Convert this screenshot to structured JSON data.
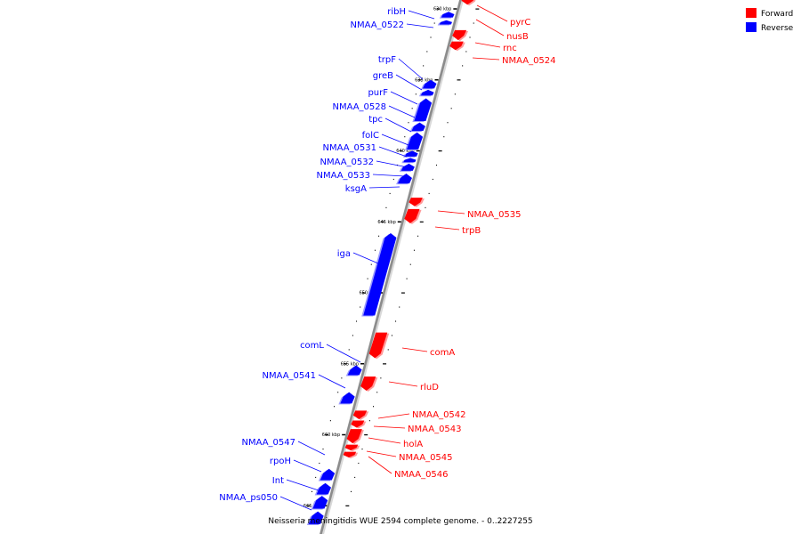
{
  "legend": {
    "forward_label": "Forward",
    "reverse_label": "Reverse",
    "forward_color": "#ff0000",
    "reverse_color": "#0000ff"
  },
  "caption": "Neisseria meningitidis WUE 2594 complete genome. - 0..2227255",
  "colors": {
    "axis": "#8c8c8c",
    "leader_forward": "#ff0000",
    "leader_reverse": "#0000ff"
  },
  "ticks": [
    {
      "label": "630 kbp",
      "kbp": 630
    },
    {
      "label": "635 kbp",
      "kbp": 635
    },
    {
      "label": "640 kbp",
      "kbp": 640
    },
    {
      "label": "645 kbp",
      "kbp": 645
    },
    {
      "label": "650 kbp",
      "kbp": 650
    },
    {
      "label": "655 kbp",
      "kbp": 655
    },
    {
      "label": "660 kbp",
      "kbp": 660
    },
    {
      "label": "665 kbp",
      "kbp": 665
    }
  ],
  "genes": [
    {
      "name": "pyrC",
      "strand": "forward",
      "start_kbp": 629.1,
      "end_kbp": 629.7
    },
    {
      "name": "nusB",
      "strand": "forward"
    },
    {
      "name": "rnc",
      "strand": "forward",
      "start_kbp": 631.5,
      "end_kbp": 632.2
    },
    {
      "name": "NMAA_0524",
      "strand": "forward",
      "start_kbp": 632.3,
      "end_kbp": 632.9
    },
    {
      "name": "ribH",
      "strand": "reverse",
      "start_kbp": 630.2,
      "end_kbp": 630.6
    },
    {
      "name": "NMAA_0522",
      "strand": "reverse",
      "start_kbp": 630.8,
      "end_kbp": 631.1
    },
    {
      "name": "trpF",
      "strand": "reverse",
      "start_kbp": 635.0,
      "end_kbp": 635.6
    },
    {
      "name": "greB",
      "strand": "reverse",
      "start_kbp": 635.7,
      "end_kbp": 636.1
    },
    {
      "name": "purF",
      "strand": "reverse",
      "start_kbp": 636.3,
      "end_kbp": 637.9
    },
    {
      "name": "NMAA_0528",
      "strand": "reverse"
    },
    {
      "name": "tpc",
      "strand": "reverse",
      "start_kbp": 638.0,
      "end_kbp": 638.6
    },
    {
      "name": "folC",
      "strand": "reverse",
      "start_kbp": 638.7,
      "end_kbp": 639.9
    },
    {
      "name": "NMAA_0531",
      "strand": "reverse",
      "start_kbp": 640.0,
      "end_kbp": 640.4
    },
    {
      "name": "NMAA_0532",
      "strand": "reverse",
      "start_kbp": 640.5,
      "end_kbp": 640.8
    },
    {
      "name": "NMAA_0533",
      "strand": "reverse",
      "start_kbp": 640.9,
      "end_kbp": 641.4
    },
    {
      "name": "ksgA",
      "strand": "reverse",
      "start_kbp": 641.6,
      "end_kbp": 642.3
    },
    {
      "name": "NMAA_0535",
      "strand": "forward",
      "start_kbp": 643.3,
      "end_kbp": 643.9
    },
    {
      "name": "trpB",
      "strand": "forward",
      "start_kbp": 644.1,
      "end_kbp": 645.1
    },
    {
      "name": "iga",
      "strand": "reverse",
      "start_kbp": 645.8,
      "end_kbp": 651.6
    },
    {
      "name": "comA",
      "strand": "forward",
      "start_kbp": 652.8,
      "end_kbp": 654.6
    },
    {
      "name": "comL",
      "strand": "reverse",
      "start_kbp": 655.1,
      "end_kbp": 655.8
    },
    {
      "name": "rluD",
      "strand": "forward",
      "start_kbp": 655.9,
      "end_kbp": 656.9
    },
    {
      "name": "NMAA_0541",
      "strand": "reverse",
      "start_kbp": 657.0,
      "end_kbp": 657.8
    },
    {
      "name": "NMAA_0542",
      "strand": "forward",
      "start_kbp": 658.3,
      "end_kbp": 658.9
    },
    {
      "name": "NMAA_0543",
      "strand": "forward",
      "start_kbp": 659.0,
      "end_kbp": 659.5
    },
    {
      "name": "holA",
      "strand": "forward",
      "start_kbp": 659.6,
      "end_kbp": 660.6
    },
    {
      "name": "NMAA_0545",
      "strand": "forward",
      "start_kbp": 660.7,
      "end_kbp": 661.1
    },
    {
      "name": "NMAA_0546",
      "strand": "forward",
      "start_kbp": 661.2,
      "end_kbp": 661.6
    },
    {
      "name": "NMAA_0547",
      "strand": "reverse",
      "start_kbp": 662.4,
      "end_kbp": 663.2
    },
    {
      "name": "rpoH",
      "strand": "reverse",
      "start_kbp": 663.4,
      "end_kbp": 664.2
    },
    {
      "name": "Int",
      "strand": "reverse",
      "start_kbp": 664.3,
      "end_kbp": 665.2
    },
    {
      "name": "NMAA_ps050",
      "strand": "reverse",
      "start_kbp": 665.4,
      "end_kbp": 666.3
    }
  ]
}
